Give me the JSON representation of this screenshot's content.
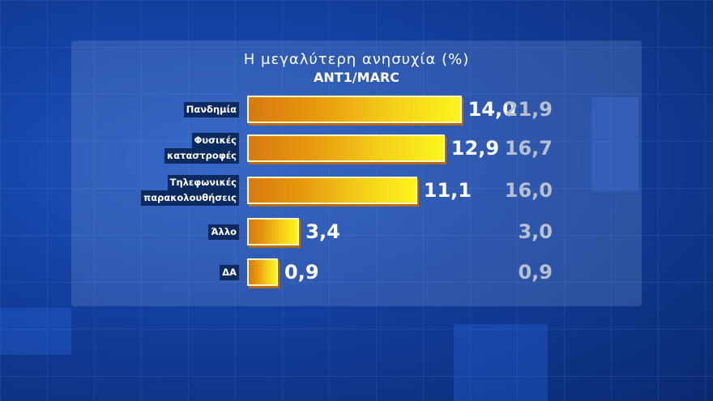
{
  "chart_data": {
    "type": "bar",
    "orientation": "horizontal",
    "title": "Η μεγαλύτερη ανησυχία (%)",
    "subtitle": "ANT1/MARC",
    "categories": [
      {
        "lines": [
          "Πανδημία"
        ]
      },
      {
        "lines": [
          "Φυσικές",
          "καταστροφές"
        ]
      },
      {
        "lines": [
          "Τηλεφωνικές",
          "παρακολουθήσεις"
        ]
      },
      {
        "lines": [
          "Άλλο"
        ]
      },
      {
        "lines": [
          "ΔΑ"
        ]
      }
    ],
    "values": [
      14.0,
      12.9,
      11.1,
      3.4,
      0.9
    ],
    "value_labels": [
      "14,0",
      "12,9",
      "11,1",
      "3,4",
      "0,9"
    ],
    "previous_values": [
      21.9,
      16.7,
      16.0,
      3.0,
      0.9
    ],
    "previous_labels": [
      "21,9",
      "16,7",
      "16,0",
      "3,0",
      "0,9"
    ],
    "colors": {
      "bar_start": "#d77a10",
      "bar_end": "#fbf51c",
      "previous": "#b8c0d0"
    }
  }
}
